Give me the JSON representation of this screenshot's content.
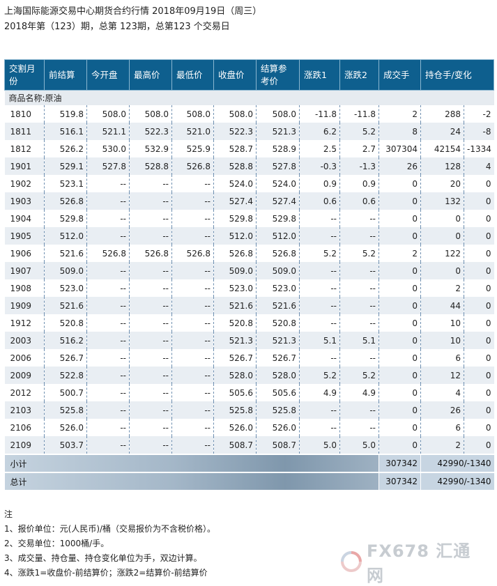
{
  "header": {
    "title": "上海国际能源交易中心期货合约行情 2018年09月19日（周三）",
    "subtitle": "2018年第（123）期，总第 123期，总第123 个交易日"
  },
  "table": {
    "columns": [
      "交割月份",
      "前结算",
      "今开盘",
      "最高价",
      "最低价",
      "收盘价",
      "结算参考价",
      "涨跌1",
      "涨跌2",
      "成交手",
      "持仓手",
      "变化"
    ],
    "headers": {
      "c0": "交割月份",
      "c1": "前结算",
      "c2": "今开盘",
      "c3": "最高价",
      "c4": "最低价",
      "c5": "收盘价",
      "c6": "结算参考价",
      "c7": "涨跌1",
      "c8": "涨跌2",
      "c9": "成交手",
      "c10": "持仓手/变化"
    },
    "category": "商品名称:原油",
    "rows": [
      [
        "1810",
        "519.8",
        "508.0",
        "508.0",
        "508.0",
        "508.0",
        "508.0",
        "-11.8",
        "-11.8",
        "2",
        "288",
        "-2"
      ],
      [
        "1811",
        "516.1",
        "521.1",
        "522.3",
        "521.0",
        "522.3",
        "521.3",
        "6.2",
        "5.2",
        "8",
        "24",
        "-8"
      ],
      [
        "1812",
        "526.2",
        "530.0",
        "532.9",
        "525.9",
        "528.7",
        "528.9",
        "2.5",
        "2.7",
        "307304",
        "42154",
        "-1334"
      ],
      [
        "1901",
        "529.1",
        "527.8",
        "528.8",
        "526.8",
        "528.8",
        "527.8",
        "-0.3",
        "-1.3",
        "26",
        "128",
        "4"
      ],
      [
        "1902",
        "523.1",
        "--",
        "--",
        "--",
        "524.0",
        "524.0",
        "0.9",
        "0.9",
        "0",
        "20",
        "0"
      ],
      [
        "1903",
        "526.8",
        "--",
        "--",
        "--",
        "527.4",
        "527.4",
        "0.6",
        "0.6",
        "0",
        "132",
        "0"
      ],
      [
        "1904",
        "529.8",
        "--",
        "--",
        "--",
        "529.8",
        "529.8",
        "--",
        "--",
        "0",
        "0",
        "0"
      ],
      [
        "1905",
        "512.0",
        "--",
        "--",
        "--",
        "512.0",
        "512.0",
        "--",
        "--",
        "0",
        "0",
        "0"
      ],
      [
        "1906",
        "521.6",
        "526.8",
        "526.8",
        "526.8",
        "526.8",
        "526.8",
        "5.2",
        "5.2",
        "2",
        "122",
        "0"
      ],
      [
        "1907",
        "509.0",
        "--",
        "--",
        "--",
        "509.0",
        "509.0",
        "--",
        "--",
        "0",
        "0",
        "0"
      ],
      [
        "1908",
        "523.0",
        "--",
        "--",
        "--",
        "523.0",
        "523.0",
        "--",
        "--",
        "0",
        "2",
        "0"
      ],
      [
        "1909",
        "521.6",
        "--",
        "--",
        "--",
        "521.6",
        "521.6",
        "--",
        "--",
        "0",
        "44",
        "0"
      ],
      [
        "1912",
        "520.8",
        "--",
        "--",
        "--",
        "520.8",
        "520.8",
        "--",
        "--",
        "0",
        "10",
        "0"
      ],
      [
        "2003",
        "516.2",
        "--",
        "--",
        "--",
        "521.3",
        "521.3",
        "5.1",
        "5.1",
        "0",
        "10",
        "0"
      ],
      [
        "2006",
        "526.7",
        "--",
        "--",
        "--",
        "526.7",
        "526.7",
        "--",
        "--",
        "0",
        "6",
        "0"
      ],
      [
        "2009",
        "522.8",
        "--",
        "--",
        "--",
        "528.0",
        "528.0",
        "5.2",
        "5.2",
        "0",
        "12",
        "0"
      ],
      [
        "2012",
        "500.7",
        "--",
        "--",
        "--",
        "505.6",
        "505.6",
        "4.9",
        "4.9",
        "0",
        "4",
        "0"
      ],
      [
        "2103",
        "525.8",
        "--",
        "--",
        "--",
        "525.8",
        "525.8",
        "--",
        "--",
        "0",
        "26",
        "0"
      ],
      [
        "2106",
        "526.0",
        "--",
        "--",
        "--",
        "526.0",
        "526.0",
        "--",
        "--",
        "0",
        "6",
        "0"
      ],
      [
        "2109",
        "503.7",
        "--",
        "--",
        "--",
        "508.7",
        "508.7",
        "5.0",
        "5.0",
        "0",
        "2",
        "0"
      ]
    ],
    "subtotal": {
      "label": "小计",
      "volume": "307342",
      "oi": "42990/-1340"
    },
    "total": {
      "label": "总计",
      "volume": "307342",
      "oi": "42990/-1340"
    }
  },
  "notes": {
    "title": "注",
    "items": [
      "1、报价单位：元(人民币)/桶（交易报价为不含税价格）。",
      "2、交易单位：1000桶/手。",
      "3、成交量、持仓量、持仓变化单位为手，双边计算。",
      "4、涨跌1=收盘价-前结算价；涨跌2=结算价-前结算价"
    ]
  },
  "watermark": {
    "text": "FX678 汇通网",
    "icon": "fx678-logo-icon"
  },
  "colors": {
    "header_bg": "#0e5f8e",
    "alt_row": "#e9eef3",
    "total_bg": "#c7d5e2"
  }
}
